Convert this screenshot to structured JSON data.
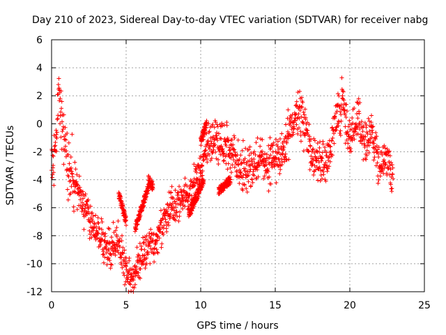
{
  "chart_data": {
    "type": "scatter",
    "title": "Day 210 of 2023, Sidereal Day-to-day VTEC variation (SDTVAR) for receiver nabg",
    "xlabel": "GPS time / hours",
    "ylabel": "SDTVAR / TECUs",
    "xlim": [
      0,
      25
    ],
    "ylim": [
      -12,
      6
    ],
    "xticks": [
      0,
      5,
      10,
      15,
      20,
      25
    ],
    "yticks": [
      -12,
      -10,
      -8,
      -6,
      -4,
      -2,
      0,
      2,
      4,
      6
    ],
    "grid": true,
    "marker": "+",
    "series": [
      {
        "name": "SDTVAR",
        "color": "#ff0000",
        "trend": {
          "x": [
            0.0,
            0.3,
            0.5,
            0.7,
            1.0,
            1.5,
            2.0,
            2.5,
            3.0,
            3.5,
            4.0,
            4.5,
            5.0,
            5.5,
            6.0,
            6.5,
            7.0,
            7.5,
            8.0,
            8.5,
            9.0,
            9.5,
            10.0,
            10.5,
            11.0,
            11.5,
            12.0,
            12.5,
            13.0,
            13.5,
            14.0,
            14.5,
            15.0,
            15.5,
            16.0,
            16.5,
            17.0,
            17.5,
            18.0,
            18.5,
            19.0,
            19.5,
            20.0,
            20.5,
            21.0,
            21.5,
            22.0,
            22.5,
            22.9
          ],
          "y": [
            -3.0,
            -2.0,
            3.0,
            -0.5,
            -2.5,
            -4.0,
            -5.5,
            -6.5,
            -7.5,
            -8.5,
            -9.0,
            -8.0,
            -10.5,
            -11.0,
            -9.5,
            -9.0,
            -8.5,
            -7.0,
            -6.0,
            -5.5,
            -5.0,
            -4.5,
            -3.0,
            -1.5,
            -1.0,
            -1.5,
            -2.0,
            -3.0,
            -3.5,
            -3.0,
            -2.5,
            -3.0,
            -2.5,
            -2.0,
            -0.5,
            1.0,
            0.0,
            -2.5,
            -3.0,
            -2.5,
            0.0,
            1.5,
            -1.0,
            0.5,
            -1.5,
            -0.5,
            -3.0,
            -2.5,
            -4.0
          ]
        },
        "spread": [
          {
            "x0": 0.0,
            "x1": 0.5,
            "amplitude": 1.5
          },
          {
            "x0": 0.5,
            "x1": 1.5,
            "amplitude": 2.0
          },
          {
            "x0": 1.5,
            "x1": 10.0,
            "amplitude": 1.2
          },
          {
            "x0": 10.0,
            "x1": 23.0,
            "amplitude": 1.4
          }
        ],
        "islands": [
          {
            "x0": 4.5,
            "x1": 5.0,
            "y0": -5.0,
            "y1": -7.0
          },
          {
            "x0": 5.6,
            "x1": 6.5,
            "y0": -7.5,
            "y1": -4.5
          },
          {
            "x0": 6.5,
            "x1": 6.8,
            "y0": -4.0,
            "y1": -4.5
          },
          {
            "x0": 9.2,
            "x1": 10.2,
            "y0": -6.5,
            "y1": -4.0
          },
          {
            "x0": 10.0,
            "x1": 10.4,
            "y0": -1.3,
            "y1": 0.1
          },
          {
            "x0": 11.2,
            "x1": 12.0,
            "y0": -4.8,
            "y1": -4.0
          }
        ]
      }
    ]
  }
}
